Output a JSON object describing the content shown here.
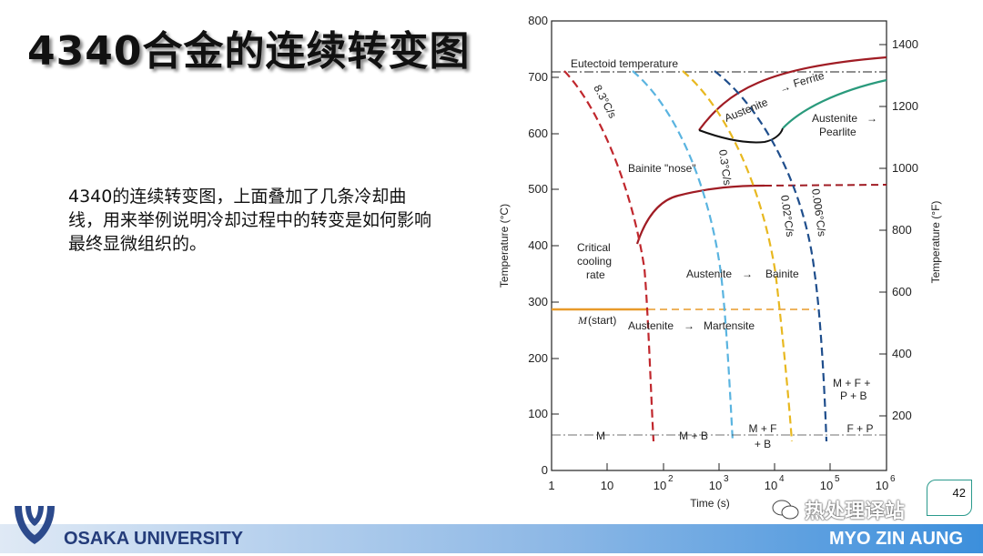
{
  "slide": {
    "title": "4340合金的连续转变图",
    "description": "4340的连续转变图，上面叠加了几条冷却曲线，用来举例说明冷却过程中的转变是如何影响最终显微组织的。",
    "page_number": "42"
  },
  "footer": {
    "university": "OSAKA UNIVERSITY",
    "author": "MYO ZIN AUNG",
    "watermark": "热处理译站"
  },
  "diagram": {
    "y_axis_left": {
      "label": "Temperature (°C)",
      "ticks": [
        "0",
        "100",
        "200",
        "300",
        "400",
        "500",
        "600",
        "700",
        "800"
      ]
    },
    "y_axis_right": {
      "label": "Temperature (°F)",
      "ticks": [
        "200",
        "400",
        "600",
        "800",
        "1000",
        "1200",
        "1400"
      ]
    },
    "x_axis": {
      "label": "Time (s)",
      "ticks": [
        "1",
        "10",
        "10",
        "2",
        "10",
        "3",
        "10",
        "4",
        "10",
        "5",
        "10",
        "6"
      ]
    },
    "labels": {
      "eutectoid": "Eutectoid temperature",
      "austenite_ferrite_a": "Austenite",
      "austenite_ferrite_b": "Ferrite",
      "austenite_pearlite_a": "Austenite",
      "austenite_pearlite_b": "Pearlite",
      "bainite_nose": "Bainite \"nose\"",
      "critical_1": "Critical",
      "critical_2": "cooling",
      "critical_3": "rate",
      "austenite_bainite_a": "Austenite",
      "austenite_bainite_b": "Bainite",
      "m_start_m": "M",
      "m_start_rest": " (start)",
      "austenite_martensite_a": "Austenite",
      "austenite_martensite_b": "Martensite",
      "rate_1": "8.3°C/s",
      "rate_2": "0.3°C/s",
      "rate_3": "0.02°C/s",
      "rate_4": "0.006°C/s",
      "mfpb_1": "M + F +",
      "mfpb_2": "P + B",
      "zone_m": "M",
      "zone_mb": "M + B",
      "zone_mf_1": "M + F",
      "zone_mf_2": "+ B",
      "zone_fp": "F + P"
    },
    "colors": {
      "rate_8_3": "#c0272d",
      "rate_0_3": "#5ab4e0",
      "rate_0_02": "#e8b820",
      "rate_0_006": "#1f4e8c",
      "transformation_red": "#a01c24",
      "pearlite_green": "#2a9a7c",
      "m_start": "#e89a2a"
    }
  }
}
